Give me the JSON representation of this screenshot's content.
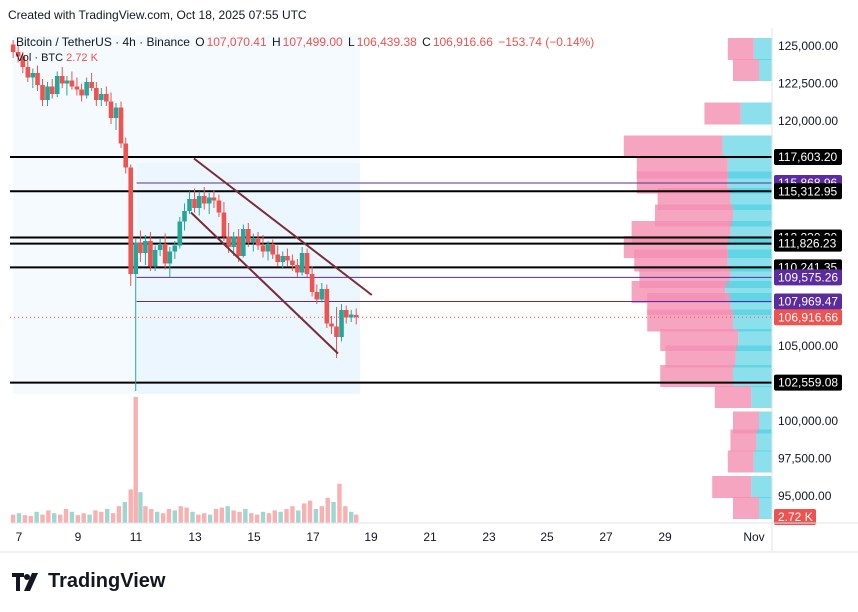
{
  "header": {
    "created_by": "Created with TradingView.com, Oct 18, 2025 07:55 UTC"
  },
  "legend": {
    "symbol": "Bitcoin / TetherUS · 4h · Binance",
    "open_label": "O",
    "open": "107,070.41",
    "high_label": "H",
    "high": "107,499.00",
    "low_label": "L",
    "low": "106,439.38",
    "close_label": "C",
    "close": "106,916.66",
    "change": "−153.74 (−0.14%)"
  },
  "volume_legend": {
    "label": "Vol · BTC",
    "value": "2.72 K"
  },
  "brand": {
    "name": "TradingView"
  },
  "colors": {
    "up": "#26a69a",
    "down": "#ef5350",
    "pink": "#f48fb1",
    "cyan": "#4dd0e1",
    "channel": "#7b2d36",
    "purple": "#5b2c9f",
    "shade": "#e3f2fd"
  },
  "chart_data": {
    "type": "candlestick",
    "title": "Bitcoin / TetherUS · 4h · Binance",
    "interval": "4h",
    "ylim": [
      93200,
      126200
    ],
    "x_ticks": [
      "7",
      "9",
      "11",
      "13",
      "15",
      "17",
      "19",
      "21",
      "23",
      "25",
      "27",
      "29",
      "Nov"
    ],
    "y_ticks": [
      "125,000.00",
      "122,500.00",
      "120,000.00",
      "105,000.00",
      "100,000.00",
      "97,500.00",
      "95,000.00"
    ],
    "price_levels": [
      {
        "price": 117603.2,
        "label": "117,603.20",
        "style": "black"
      },
      {
        "price": 115868.96,
        "label": "115,868.96",
        "style": "purple"
      },
      {
        "price": 115312.95,
        "label": "115,312.95",
        "style": "black"
      },
      {
        "price": 112230.3,
        "label": "112,230.30",
        "style": "black"
      },
      {
        "price": 111826.23,
        "label": "111,826.23",
        "style": "black"
      },
      {
        "price": 110241.35,
        "label": "110,241.35",
        "style": "black"
      },
      {
        "price": 109575.26,
        "label": "109,575.26",
        "style": "purple"
      },
      {
        "price": 107969.47,
        "label": "107,969.47",
        "style": "purple"
      },
      {
        "price": 106916.66,
        "label": "106,916.66",
        "style": "last"
      },
      {
        "price": 102559.08,
        "label": "102,559.08",
        "style": "black"
      }
    ],
    "volume_label": "2.72 K",
    "candles": [
      [
        6.8,
        125100,
        125400,
        124200,
        124600
      ],
      [
        6.97,
        124600,
        125000,
        123900,
        124300
      ],
      [
        7.13,
        124300,
        124600,
        123200,
        123600
      ],
      [
        7.3,
        123600,
        124000,
        122600,
        122900
      ],
      [
        7.47,
        122900,
        123500,
        122200,
        123200
      ],
      [
        7.63,
        123200,
        123700,
        122000,
        122400
      ],
      [
        7.8,
        122400,
        122800,
        121000,
        121400
      ],
      [
        7.97,
        121400,
        122600,
        121000,
        122300
      ],
      [
        8.13,
        122300,
        122800,
        121500,
        121800
      ],
      [
        8.3,
        121800,
        123300,
        121600,
        123000
      ],
      [
        8.47,
        123000,
        123600,
        122200,
        122500
      ],
      [
        8.63,
        122500,
        123000,
        121700,
        122700
      ],
      [
        8.8,
        122700,
        123300,
        122100,
        122300
      ],
      [
        8.97,
        122300,
        122900,
        121700,
        122100
      ],
      [
        9.13,
        122100,
        122500,
        121300,
        121700
      ],
      [
        9.3,
        121700,
        122900,
        121500,
        122600
      ],
      [
        9.47,
        122600,
        123200,
        122000,
        122200
      ],
      [
        9.63,
        122200,
        122600,
        121000,
        121400
      ],
      [
        9.8,
        121400,
        122200,
        121000,
        121800
      ],
      [
        9.97,
        121800,
        122300,
        121000,
        121300
      ],
      [
        10.13,
        121300,
        121900,
        119800,
        120200
      ],
      [
        10.3,
        120200,
        121200,
        119400,
        120900
      ],
      [
        10.47,
        120900,
        121300,
        118200,
        118500
      ],
      [
        10.63,
        118500,
        118900,
        116500,
        116900
      ],
      [
        10.8,
        116900,
        117100,
        109000,
        109800
      ],
      [
        10.97,
        109800,
        112200,
        102000,
        111900
      ],
      [
        11.13,
        111900,
        112700,
        110600,
        111200
      ],
      [
        11.3,
        111200,
        112400,
        110400,
        112000
      ],
      [
        11.47,
        112000,
        112600,
        110000,
        110300
      ],
      [
        11.63,
        110300,
        111700,
        110000,
        111400
      ],
      [
        11.8,
        111400,
        112200,
        111000,
        111800
      ],
      [
        11.97,
        111800,
        112500,
        110100,
        110500
      ],
      [
        12.13,
        110500,
        111600,
        109600,
        111300
      ],
      [
        12.3,
        111300,
        112000,
        110800,
        111700
      ],
      [
        12.47,
        111700,
        113600,
        111500,
        113300
      ],
      [
        12.63,
        113300,
        114500,
        112700,
        114000
      ],
      [
        12.8,
        114000,
        115300,
        113800,
        114800
      ],
      [
        12.97,
        114800,
        115500,
        113900,
        114200
      ],
      [
        13.13,
        114200,
        115300,
        113700,
        115000
      ],
      [
        13.3,
        115000,
        115600,
        114100,
        114500
      ],
      [
        13.47,
        114500,
        115200,
        113800,
        114900
      ],
      [
        13.63,
        114900,
        115400,
        114200,
        114700
      ],
      [
        13.8,
        114700,
        115100,
        113600,
        113900
      ],
      [
        13.97,
        113900,
        114600,
        112000,
        112300
      ],
      [
        14.13,
        112300,
        113200,
        111200,
        111600
      ],
      [
        14.3,
        111600,
        112600,
        111000,
        112300
      ],
      [
        14.47,
        112300,
        112800,
        110600,
        111000
      ],
      [
        14.63,
        111000,
        113100,
        110900,
        112800
      ],
      [
        14.8,
        112800,
        113200,
        111600,
        111900
      ],
      [
        14.97,
        111900,
        112500,
        111300,
        112200
      ],
      [
        15.13,
        112200,
        112600,
        111400,
        111700
      ],
      [
        15.3,
        111700,
        112400,
        110900,
        111300
      ],
      [
        15.47,
        111300,
        112000,
        110700,
        111800
      ],
      [
        15.63,
        111800,
        112100,
        110800,
        111100
      ],
      [
        15.8,
        111100,
        111700,
        110300,
        110600
      ],
      [
        15.97,
        110600,
        111300,
        110200,
        111000
      ],
      [
        16.13,
        111000,
        111500,
        110300,
        110700
      ],
      [
        16.3,
        110700,
        111100,
        110000,
        110400
      ],
      [
        16.47,
        110400,
        110800,
        109600,
        109900
      ],
      [
        16.63,
        109900,
        111600,
        109700,
        111200
      ],
      [
        16.8,
        111200,
        111500,
        109600,
        109800
      ],
      [
        16.97,
        109800,
        110300,
        108300,
        108600
      ],
      [
        17.13,
        108600,
        109100,
        107800,
        108100
      ],
      [
        17.3,
        108100,
        109200,
        107900,
        108800
      ],
      [
        17.47,
        108800,
        109100,
        106200,
        106500
      ],
      [
        17.63,
        106500,
        107000,
        105800,
        106300
      ],
      [
        17.8,
        106300,
        107600,
        104200,
        105600
      ],
      [
        17.97,
        105600,
        107800,
        105300,
        107400
      ],
      [
        18.13,
        107400,
        107700,
        106500,
        106900
      ],
      [
        18.3,
        106900,
        107400,
        106600,
        107100
      ],
      [
        18.47,
        107070,
        107499,
        106439,
        106917
      ]
    ],
    "volumes": [
      [
        6.8,
        0.3
      ],
      [
        7.0,
        0.35
      ],
      [
        7.2,
        0.28
      ],
      [
        7.4,
        0.25
      ],
      [
        7.6,
        0.4
      ],
      [
        7.8,
        0.3
      ],
      [
        8.0,
        0.45
      ],
      [
        8.2,
        0.35
      ],
      [
        8.4,
        0.3
      ],
      [
        8.6,
        0.5
      ],
      [
        8.8,
        0.4
      ],
      [
        9.0,
        0.28
      ],
      [
        9.2,
        0.35
      ],
      [
        9.4,
        0.3
      ],
      [
        9.6,
        0.45
      ],
      [
        9.8,
        0.4
      ],
      [
        10.0,
        0.5
      ],
      [
        10.2,
        0.35
      ],
      [
        10.4,
        0.6
      ],
      [
        10.6,
        0.75
      ],
      [
        10.8,
        1.2
      ],
      [
        10.97,
        4.5
      ],
      [
        11.13,
        1.1
      ],
      [
        11.3,
        0.6
      ],
      [
        11.5,
        0.5
      ],
      [
        11.7,
        0.4
      ],
      [
        11.9,
        0.35
      ],
      [
        12.1,
        0.5
      ],
      [
        12.3,
        0.45
      ],
      [
        12.5,
        0.6
      ],
      [
        12.7,
        0.55
      ],
      [
        12.9,
        0.4
      ],
      [
        13.1,
        0.3
      ],
      [
        13.3,
        0.35
      ],
      [
        13.5,
        0.3
      ],
      [
        13.7,
        0.5
      ],
      [
        13.9,
        0.55
      ],
      [
        14.1,
        0.6
      ],
      [
        14.3,
        0.45
      ],
      [
        14.5,
        0.4
      ],
      [
        14.7,
        0.5
      ],
      [
        14.9,
        0.35
      ],
      [
        15.1,
        0.3
      ],
      [
        15.3,
        0.4
      ],
      [
        15.5,
        0.35
      ],
      [
        15.7,
        0.45
      ],
      [
        15.9,
        0.4
      ],
      [
        16.1,
        0.5
      ],
      [
        16.3,
        0.6
      ],
      [
        16.5,
        0.45
      ],
      [
        16.7,
        0.7
      ],
      [
        16.9,
        0.8
      ],
      [
        17.1,
        0.5
      ],
      [
        17.3,
        0.6
      ],
      [
        17.5,
        0.9
      ],
      [
        17.7,
        0.75
      ],
      [
        17.9,
        1.4
      ],
      [
        18.1,
        0.6
      ],
      [
        18.3,
        0.4
      ],
      [
        18.47,
        0.3
      ]
    ],
    "volume_profile": [
      [
        124800,
        1,
        0.7
      ],
      [
        123400,
        1,
        0.5
      ],
      [
        120500,
        1.4,
        1.2
      ],
      [
        118300,
        3.8,
        1.9
      ],
      [
        116900,
        3.5,
        1.7
      ],
      [
        115900,
        3.5,
        1.7
      ],
      [
        114800,
        2.8,
        1.6
      ],
      [
        113700,
        3,
        1.5
      ],
      [
        112600,
        3.8,
        1.6
      ],
      [
        111600,
        4.0,
        1.7
      ],
      [
        110700,
        3.6,
        1.7
      ],
      [
        109600,
        3.5,
        1.6
      ],
      [
        108600,
        3.6,
        1.8
      ],
      [
        107800,
        3.2,
        1.6
      ],
      [
        106700,
        3.3,
        1.5
      ],
      [
        105400,
        3.0,
        1.3
      ],
      [
        104300,
        2.7,
        1.4
      ],
      [
        103000,
        2.8,
        1.5
      ],
      [
        101600,
        1.4,
        0.8
      ],
      [
        99900,
        1,
        0.5
      ],
      [
        98700,
        1,
        0.6
      ],
      [
        97300,
        1,
        0.7
      ],
      [
        95600,
        1.5,
        0.8
      ],
      [
        94200,
        1,
        0.5
      ]
    ],
    "channel_lines": [
      {
        "from": [
          12.95,
          117500
        ],
        "to": [
          19.0,
          108400
        ]
      },
      {
        "from": [
          12.85,
          113900
        ],
        "to": [
          17.85,
          104500
        ]
      }
    ],
    "shaded_ranges": [
      {
        "x_from": 6.8,
        "x_to": 18.6,
        "y_from": 101800,
        "y_to": 125700,
        "opacity": 0.35
      },
      {
        "x_from": 11.0,
        "x_to": 18.6,
        "y_from": 101800,
        "y_to": 117200,
        "opacity": 0.5
      }
    ]
  }
}
